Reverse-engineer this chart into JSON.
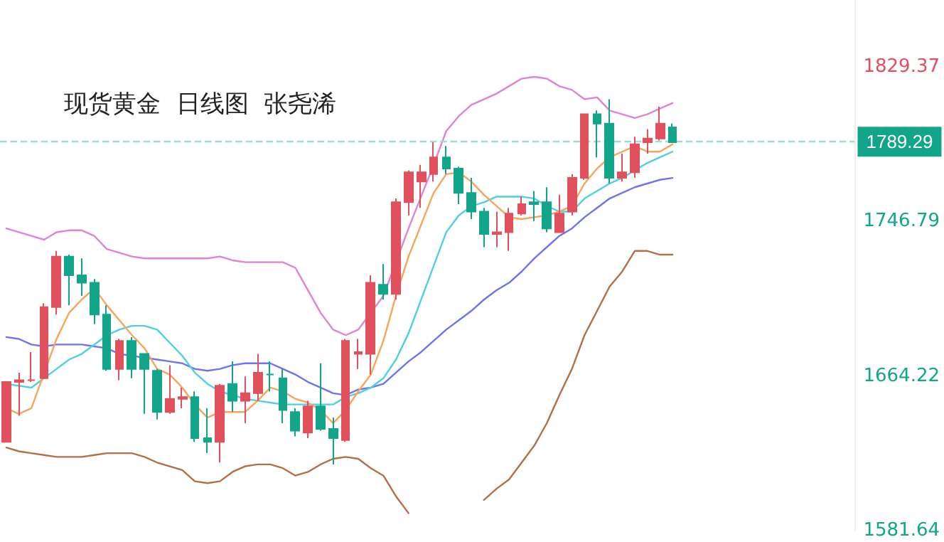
{
  "chart_data": {
    "type": "candlestick",
    "title": "现货黄金  日线图  张尧浠",
    "categories": [
      null,
      null,
      null,
      null,
      null,
      null,
      null,
      null,
      null,
      null,
      null,
      null,
      null,
      null,
      null,
      null,
      null,
      null,
      null,
      null,
      null,
      null,
      null,
      null,
      null,
      null,
      null,
      null,
      null,
      null,
      null,
      null,
      null,
      null,
      null,
      null,
      null,
      null,
      null,
      null,
      null,
      null,
      null,
      null,
      null,
      null,
      null,
      null,
      null,
      null,
      null,
      null,
      null,
      null
    ],
    "ylim": [
      1581.64,
      1865
    ],
    "yticks": [
      1829.37,
      1746.79,
      1664.22,
      1581.64
    ],
    "tick_labels": "y",
    "grid": false,
    "marker": "none",
    "line_style": "solid",
    "ref_lines": [
      {
        "axis": "y",
        "value": 1789.29,
        "label": "1789.29",
        "color": "#9fdccb",
        "line_style": "dashed"
      }
    ],
    "series": [
      {
        "type": "line",
        "color": "#e083d0",
        "values": [
          1743,
          1741,
          1739,
          1737,
          1741,
          1742,
          1742,
          1739,
          1732,
          1730,
          1728,
          1727,
          1727,
          1727,
          1727,
          1727,
          1727,
          1728,
          1726,
          1725,
          1725,
          1725,
          1725,
          1722,
          1710,
          1698,
          1689,
          1686,
          1689,
          1698,
          1707,
          null,
          1743,
          1760,
          1777,
          1795,
          1803,
          1809,
          1812,
          1815,
          1819,
          1823,
          1824,
          1823,
          1819,
          1817,
          1812,
          1813,
          1806,
          1804,
          1802,
          1804,
          1807,
          1810
        ]
      },
      {
        "type": "line",
        "color": "#b27048",
        "values": [
          1626,
          1624,
          1623,
          1622,
          1621,
          1621,
          1621,
          1622,
          1623,
          1623,
          1623,
          1621,
          1618,
          1616,
          1614,
          1608,
          1607,
          1608,
          1613,
          1616,
          1617,
          1617,
          1615,
          1611,
          1613,
          1617,
          1620,
          1621,
          1620,
          1615,
          1611,
          1600,
          1591,
          null,
          null,
          null,
          null,
          null,
          1598,
          1604,
          1609,
          1618,
          1627,
          1639,
          1654,
          1668,
          1686,
          1699,
          1712,
          1720,
          1731,
          1731,
          1729,
          1729
        ]
      },
      {
        "type": "line",
        "color": "#7073f0",
        "values": [
          1685,
          1684,
          1681,
          1680,
          1681,
          1681,
          1681,
          1680,
          1679,
          1676,
          1675,
          1674,
          1673,
          1672,
          1671,
          1668,
          1667,
          1668,
          1670,
          1671,
          1671,
          1671,
          1668,
          1665,
          1661,
          1658,
          1655,
          1654,
          1657,
          1658,
          1660,
          1666,
          1672,
          1677,
          1683,
          1689,
          1694,
          1699,
          1705,
          1710,
          1714,
          1720,
          1727,
          1733,
          1739,
          1743,
          1749,
          1754,
          1759,
          1762,
          1765,
          1767,
          1769,
          1770
        ]
      },
      {
        "type": "line",
        "color": "#4fcfe2",
        "values": [
          1660,
          1659,
          1658,
          1663,
          1668,
          1673,
          1676,
          1681,
          1686,
          1689,
          1691,
          1691,
          1689,
          1682,
          1675,
          1666,
          1660,
          1656,
          1654,
          1652,
          1651,
          1650,
          1649,
          1649,
          1649,
          1649,
          1649,
          1653,
          1655,
          1658,
          1663,
          1673,
          1687,
          1705,
          1723,
          1741,
          1750,
          1755,
          1757,
          1760,
          1760,
          1760,
          1759,
          1755,
          1752,
          1752,
          1759,
          1763,
          1767,
          1770,
          1774,
          1778,
          1781,
          1784
        ]
      },
      {
        "type": "line",
        "color": "#f9a45a",
        "values": [
          1647,
          1644,
          1647,
          null,
          1684,
          1698,
          1705,
          1711,
          1702,
          1694,
          1686,
          1679,
          1668,
          1665,
          1658,
          1649,
          1642,
          1645,
          1645,
          1645,
          1651,
          1658,
          1656,
          1652,
          1650,
          1646,
          1639,
          1646,
          1656,
          1665,
          1683,
          1707,
          1728,
          1745,
          1762,
          1772,
          1773,
          1768,
          1761,
          1755,
          1749,
          1748,
          1749,
          1750,
          1752,
          1755,
          1767,
          1775,
          1781,
          1784,
          1787,
          1784,
          1784,
          1788
        ]
      },
      {
        "colors": [
          "#e0505d",
          "#e0505d",
          "#e0505d",
          "#e0505d",
          "#e0505d",
          "#12a58a",
          "#12a58a",
          "#12a58a",
          "#12a58a",
          "#e0505d",
          "#12a58a",
          "#12a58a",
          "#12a58a",
          "#e0505d",
          "#e0505d",
          "#12a58a",
          "#12a58a",
          "#e0505d",
          "#12a58a",
          "#e0505d",
          "#e0505d",
          "#12a58a",
          "#12a58a",
          "#12a58a",
          "#e0505d",
          "#12a58a",
          "#12a58a",
          "#e0505d",
          "#e0505d",
          "#e0505d",
          "#12a58a",
          "#e0505d",
          "#e0505d",
          "#e0505d",
          "#e0505d",
          "#12a58a",
          "#12a58a",
          "#12a58a",
          "#12a58a",
          "#e0505d",
          "#e0505d",
          "#e0505d",
          "#12a58a",
          "#12a58a",
          "#e0505d",
          "#e0505d",
          "#e0505d",
          "#12a58a",
          "#12a58a",
          "#e0505d",
          "#e0505d",
          "#e0505d",
          "#e0505d",
          "#12a58a"
        ],
        "ohlc": [
          [
            1629,
            1661,
            1629,
            1661
          ],
          [
            1661,
            1666,
            1643,
            1662
          ],
          [
            1662,
            1677,
            1661,
            1662
          ],
          [
            1663,
            1703,
            1663,
            1701
          ],
          [
            1701,
            1731,
            1697,
            1728
          ],
          [
            1728,
            1729,
            1702,
            1718
          ],
          [
            1718,
            1727,
            1707,
            1714
          ],
          [
            1714,
            1716,
            1692,
            1697
          ],
          [
            1697,
            1702,
            1667,
            1668
          ],
          [
            1668,
            1684,
            1662,
            1683
          ],
          [
            1683,
            1685,
            1663,
            1668
          ],
          [
            1676,
            1676,
            1644,
            1668
          ],
          [
            1667,
            1668,
            1641,
            1645
          ],
          [
            1645,
            1670,
            1644,
            1652
          ],
          [
            1652,
            1658,
            1647,
            1653
          ],
          [
            1653,
            1656,
            1629,
            1631
          ],
          [
            1631,
            1647,
            1623,
            1629
          ],
          [
            1629,
            1660,
            1618,
            1659
          ],
          [
            1660,
            1672,
            1645,
            1651
          ],
          [
            1651,
            1664,
            1639,
            1655
          ],
          [
            1655,
            1676,
            1651,
            1666
          ],
          [
            1665,
            1672,
            1656,
            1665
          ],
          [
            1663,
            1668,
            1639,
            1646
          ],
          [
            1645,
            1647,
            1632,
            1635
          ],
          [
            1634,
            1651,
            1631,
            1648
          ],
          [
            1648,
            1671,
            1635,
            1636
          ],
          [
            1636,
            1642,
            1617,
            1631
          ],
          [
            1630,
            1684,
            1629,
            1683
          ],
          [
            1676,
            1684,
            1668,
            1677
          ],
          [
            1676,
            1718,
            1665,
            1714
          ],
          [
            1713,
            1724,
            1705,
            1708
          ],
          [
            1708,
            1759,
            1705,
            1757
          ],
          [
            1757,
            1774,
            1750,
            1773
          ],
          [
            1768,
            1777,
            1754,
            1773
          ],
          [
            1772,
            1789,
            1768,
            1781
          ],
          [
            1781,
            1787,
            1772,
            1775
          ],
          [
            1775,
            1776,
            1756,
            1762
          ],
          [
            1762,
            1770,
            1748,
            1752
          ],
          [
            1752,
            1754,
            1733,
            1740
          ],
          [
            1740,
            1752,
            1733,
            1741
          ],
          [
            1741,
            1754,
            1731,
            1751
          ],
          [
            1751,
            1760,
            1750,
            1756
          ],
          [
            1757,
            1763,
            1747,
            1756
          ],
          [
            1757,
            1765,
            1741,
            1743
          ],
          [
            1741,
            1761,
            1741,
            1751
          ],
          [
            1752,
            1772,
            1750,
            1770
          ],
          [
            1770,
            1804,
            1769,
            1804
          ],
          [
            1804,
            1806,
            1781,
            1799
          ],
          [
            1799,
            1812,
            1767,
            1770
          ],
          [
            1770,
            1783,
            1768,
            1773
          ],
          [
            1773,
            1792,
            1770,
            1788
          ],
          [
            1789,
            1796,
            1783,
            1791
          ],
          [
            1791,
            1808,
            1790,
            1799
          ],
          [
            1797,
            1799,
            1789,
            1789
          ]
        ]
      }
    ]
  }
}
